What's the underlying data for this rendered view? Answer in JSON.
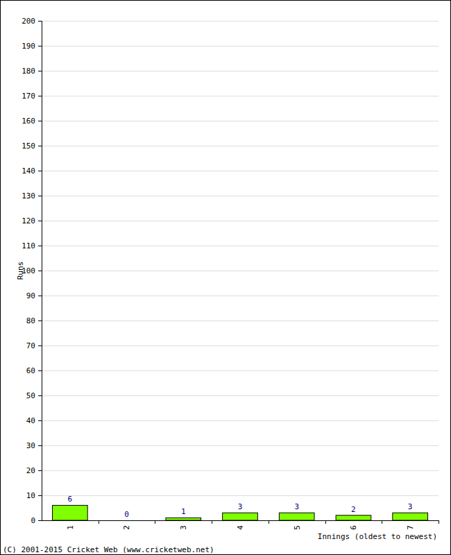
{
  "chart_data": {
    "type": "bar",
    "x_label": "Innings (oldest to newest)",
    "y_label": "Runs",
    "annotations": [
      "(C) 2001-2015 Cricket Web (www.cricketweb.net)"
    ],
    "categories": [
      "1",
      "2",
      "3",
      "4",
      "5",
      "6",
      "7"
    ],
    "values": [
      6,
      0,
      1,
      3,
      3,
      2,
      3
    ],
    "color": "#80ff00",
    "ylim": [
      0,
      200
    ],
    "yticks": [
      0,
      10,
      20,
      30,
      40,
      50,
      60,
      70,
      80,
      90,
      100,
      110,
      120,
      130,
      140,
      150,
      160,
      170,
      180,
      190,
      200
    ],
    "grid": true,
    "data_labels": true
  }
}
